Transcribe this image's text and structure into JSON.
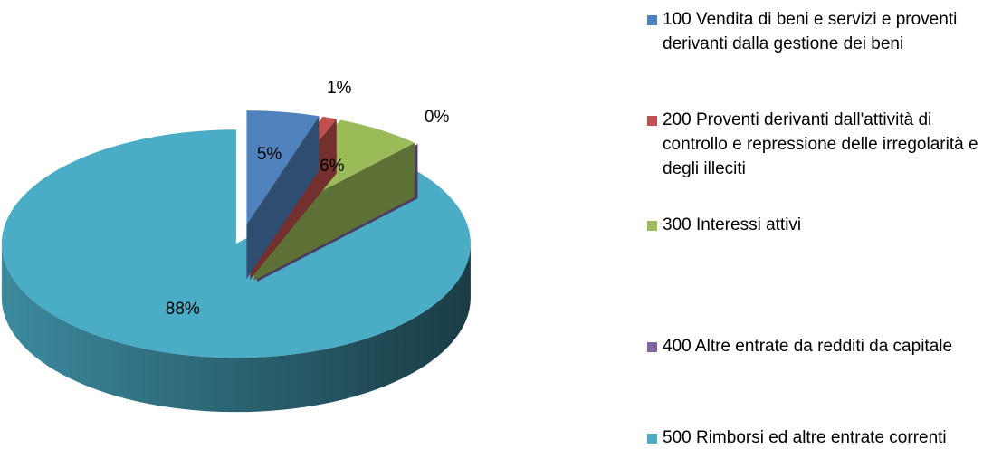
{
  "chart_data": {
    "type": "pie3d",
    "categories": [
      "100 Vendita di beni e servizi e proventi derivanti dalla gestione dei beni",
      "200 Proventi derivanti dall'attività di controllo e repressione delle irregolarità e degli illeciti",
      "300 Interessi attivi",
      "400 Altre entrate da redditi da capitale",
      "500 Rimborsi ed altre entrate correnti"
    ],
    "values": [
      5,
      1,
      6,
      0,
      88
    ],
    "value_labels": [
      "5%",
      "1%",
      "6%",
      "0%",
      "88%"
    ],
    "colors": [
      "#4f81bd",
      "#c0504d",
      "#9bbb59",
      "#8064a2",
      "#4bacc6"
    ],
    "legend": "right"
  }
}
